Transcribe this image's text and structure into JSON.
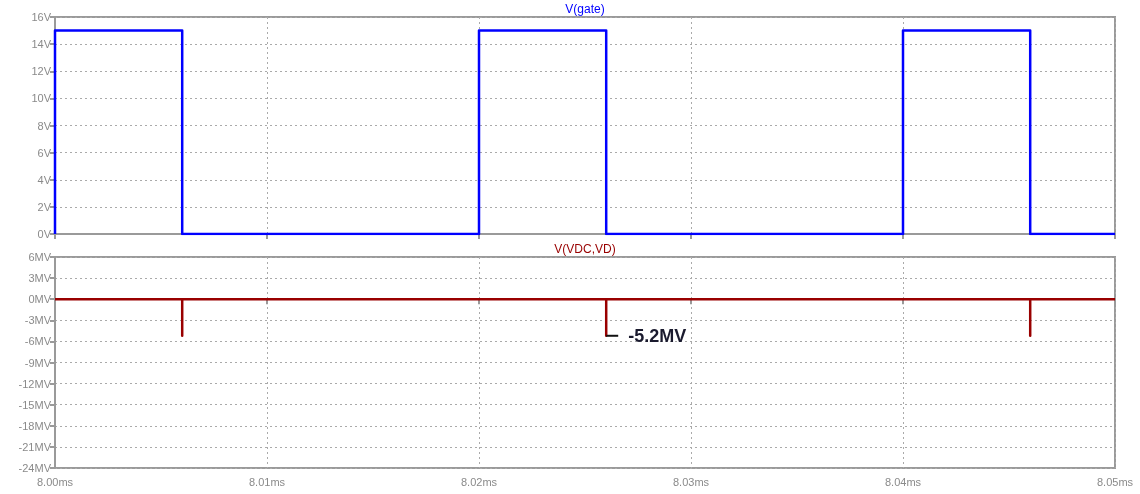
{
  "chart_data": [
    {
      "type": "line",
      "tick_labels": "y",
      "legend": "top",
      "grid": true,
      "marker": "none",
      "line_style": "solid",
      "xlim": [
        8.0,
        8.05
      ],
      "xticks": [
        {
          "value": 8.0,
          "label": null
        },
        {
          "value": 8.01,
          "label": null
        },
        {
          "value": 8.02,
          "label": null
        },
        {
          "value": 8.03,
          "label": null
        },
        {
          "value": 8.04,
          "label": null
        },
        {
          "value": 8.05,
          "label": null
        }
      ],
      "ylim": [
        0,
        16
      ],
      "yticks": [
        {
          "value": 0,
          "label": "0V"
        },
        {
          "value": 2,
          "label": "2V"
        },
        {
          "value": 4,
          "label": "4V"
        },
        {
          "value": 6,
          "label": "6V"
        },
        {
          "value": 8,
          "label": "8V"
        },
        {
          "value": 10,
          "label": "10V"
        },
        {
          "value": 12,
          "label": "12V"
        },
        {
          "value": 14,
          "label": "14V"
        },
        {
          "value": 16,
          "label": "16V"
        }
      ],
      "series": [
        {
          "name": "V(gate)",
          "color": "#0000ff",
          "x": [
            8.0,
            8.0,
            8.006,
            8.006,
            8.02,
            8.02,
            8.026,
            8.026,
            8.04,
            8.04,
            8.046,
            8.046,
            8.05
          ],
          "values": [
            0,
            15,
            15,
            0,
            0,
            15,
            15,
            0,
            0,
            15,
            15,
            0,
            0
          ]
        }
      ]
    },
    {
      "type": "line",
      "legend": "top",
      "grid": true,
      "marker": "none",
      "line_style": "solid",
      "xlim": [
        8.0,
        8.05
      ],
      "xticks": [
        {
          "value": 8.0,
          "label": "8.00ms"
        },
        {
          "value": 8.01,
          "label": "8.01ms"
        },
        {
          "value": 8.02,
          "label": "8.02ms"
        },
        {
          "value": 8.03,
          "label": "8.03ms"
        },
        {
          "value": 8.04,
          "label": "8.04ms"
        },
        {
          "value": 8.05,
          "label": "8.05ms"
        }
      ],
      "ylim": [
        -24,
        6
      ],
      "yticks": [
        {
          "value": -24,
          "label": "-24MV"
        },
        {
          "value": -21,
          "label": "-21MV"
        },
        {
          "value": -18,
          "label": "-18MV"
        },
        {
          "value": -15,
          "label": "-15MV"
        },
        {
          "value": -12,
          "label": "-12MV"
        },
        {
          "value": -9,
          "label": "-9MV"
        },
        {
          "value": -6,
          "label": "-6MV"
        },
        {
          "value": -3,
          "label": "-3MV"
        },
        {
          "value": 0,
          "label": "0MV"
        },
        {
          "value": 3,
          "label": "3MV"
        },
        {
          "value": 6,
          "label": "6MV"
        }
      ],
      "series": [
        {
          "name": "V(VDC,VD)",
          "color": "#990000",
          "x": [
            8.0,
            8.006,
            8.006,
            8.006,
            8.026,
            8.026,
            8.026,
            8.046,
            8.046,
            8.046,
            8.05
          ],
          "values": [
            0,
            0,
            -5.2,
            0,
            0,
            -5.2,
            0,
            0,
            -5.2,
            0,
            0
          ]
        }
      ],
      "annotations": [
        {
          "text": "-5.2MV",
          "x": 8.026,
          "y": -5.2
        }
      ]
    }
  ]
}
